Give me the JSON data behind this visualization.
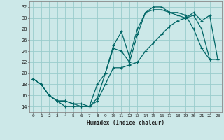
{
  "xlabel": "Humidex (Indice chaleur)",
  "bg_color": "#cce8e8",
  "grid_color": "#99cccc",
  "line_color": "#006666",
  "xlim": [
    -0.5,
    23.5
  ],
  "ylim": [
    13,
    33
  ],
  "xticks": [
    0,
    1,
    2,
    3,
    4,
    5,
    6,
    7,
    8,
    9,
    10,
    11,
    12,
    13,
    14,
    15,
    16,
    17,
    18,
    19,
    20,
    21,
    22,
    23
  ],
  "yticks": [
    14,
    16,
    18,
    20,
    22,
    24,
    26,
    28,
    30,
    32
  ],
  "line_upper_x": [
    0,
    1,
    2,
    3,
    4,
    5,
    6,
    7,
    8,
    9,
    10,
    11,
    12,
    13,
    14,
    15,
    16,
    17,
    18,
    19,
    20,
    21,
    22
  ],
  "line_upper_y": [
    19,
    18,
    16,
    15,
    15,
    14.5,
    14,
    14,
    18,
    20,
    25,
    27.5,
    23,
    28,
    31,
    32,
    32,
    31,
    31,
    30.5,
    28,
    24.5,
    22.5
  ],
  "line_mid_x": [
    0,
    1,
    2,
    3,
    4,
    5,
    6,
    7,
    8,
    9,
    10,
    11,
    12,
    13,
    14,
    15,
    16,
    17,
    18,
    19,
    20,
    21,
    22,
    23
  ],
  "line_mid_y": [
    19,
    18,
    16,
    15,
    15,
    14.5,
    14.5,
    14,
    15.5,
    20,
    24.5,
    24,
    22,
    27,
    31,
    31.5,
    31.5,
    31,
    30.5,
    30,
    30.5,
    28,
    22.5,
    22.5
  ],
  "line_lower_x": [
    0,
    1,
    2,
    3,
    4,
    5,
    6,
    7,
    8,
    9,
    10,
    11,
    12,
    13,
    14,
    15,
    16,
    17,
    18,
    19,
    20,
    21,
    22,
    23
  ],
  "line_lower_y": [
    19,
    18,
    16,
    15,
    14,
    14,
    14,
    14,
    15,
    18,
    21,
    21,
    21.5,
    22,
    24,
    25.5,
    27,
    28.5,
    29.5,
    30,
    31,
    29.5,
    30.5,
    22.5
  ]
}
